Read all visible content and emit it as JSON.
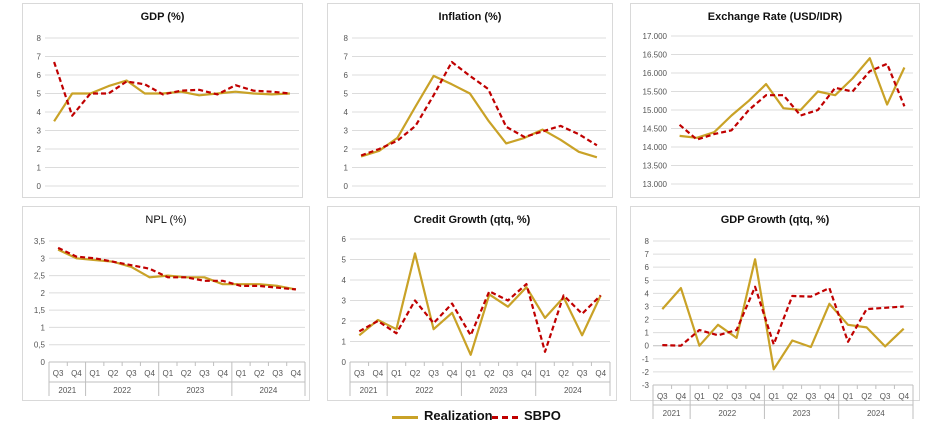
{
  "colors": {
    "realization": "#C9A227",
    "sbpo": "#C00000",
    "grid": "#dcdcdc",
    "axis": "#bfbfbf",
    "text": "#555555"
  },
  "legend": {
    "realization": "Realization",
    "sbpo": "SBPO"
  },
  "chart_data": [
    {
      "id": "gdp",
      "type": "line",
      "title": "GDP (%)",
      "title_weight": "bold",
      "ylim": [
        0,
        8
      ],
      "yticks": [
        0,
        1,
        2,
        3,
        4,
        5,
        6,
        7,
        8
      ],
      "ytick_labels": [
        "0",
        "1",
        "2",
        "3",
        "4",
        "5",
        "6",
        "7",
        "8"
      ],
      "xaxis": "none",
      "series": [
        {
          "name": "Realization",
          "values": [
            3.5,
            5.0,
            5.0,
            5.4,
            5.7,
            5.0,
            5.0,
            5.1,
            4.9,
            5.0,
            5.1,
            5.0,
            4.95,
            5.0
          ]
        },
        {
          "name": "SBPO",
          "values": [
            6.7,
            3.8,
            5.0,
            5.0,
            5.65,
            5.5,
            4.95,
            5.15,
            5.2,
            4.95,
            5.45,
            5.15,
            5.1,
            5.0
          ]
        }
      ]
    },
    {
      "id": "inflation",
      "type": "line",
      "title": "Inflation (%)",
      "title_weight": "bold",
      "ylim": [
        0,
        8
      ],
      "yticks": [
        0,
        1,
        2,
        3,
        4,
        5,
        6,
        7,
        8
      ],
      "ytick_labels": [
        "0",
        "1",
        "2",
        "3",
        "4",
        "5",
        "6",
        "7",
        "8"
      ],
      "xaxis": "none",
      "series": [
        {
          "name": "Realization",
          "values": [
            1.6,
            1.9,
            2.6,
            4.3,
            5.95,
            5.5,
            5.0,
            3.55,
            2.3,
            2.6,
            3.05,
            2.5,
            1.85,
            1.55
          ]
        },
        {
          "name": "SBPO",
          "values": [
            1.65,
            2.0,
            2.45,
            3.25,
            4.9,
            6.7,
            5.95,
            5.25,
            3.2,
            2.65,
            2.95,
            3.25,
            2.8,
            2.2
          ]
        }
      ]
    },
    {
      "id": "exchange",
      "type": "line",
      "title": "Exchange Rate (USD/IDR)",
      "title_weight": "bold",
      "ylim": [
        13000,
        17000
      ],
      "yticks": [
        13000,
        13500,
        14000,
        14500,
        15000,
        15500,
        16000,
        16500,
        17000
      ],
      "ytick_labels": [
        "13.000",
        "13.500",
        "14.000",
        "14.500",
        "15.000",
        "15.500",
        "16.000",
        "16.500",
        "17.000"
      ],
      "xaxis": "none",
      "series": [
        {
          "name": "Realization",
          "values": [
            14300,
            14250,
            14400,
            14850,
            15250,
            15700,
            15050,
            15000,
            15500,
            15400,
            15850,
            16400,
            15150,
            16150
          ]
        },
        {
          "name": "SBPO",
          "values": [
            14600,
            14200,
            14350,
            14450,
            15000,
            15400,
            15400,
            14850,
            15000,
            15600,
            15500,
            16050,
            16250,
            15100
          ]
        }
      ]
    },
    {
      "id": "npl",
      "type": "line",
      "title": "NPL (%)",
      "title_weight": "normal",
      "ylim": [
        0,
        3.5
      ],
      "yticks": [
        0,
        0.5,
        1,
        1.5,
        2,
        2.5,
        3,
        3.5
      ],
      "ytick_labels": [
        "0",
        "0,5",
        "1",
        "1,5",
        "2",
        "2,5",
        "3",
        "3,5"
      ],
      "xaxis": "quarters",
      "quarters": [
        "Q3",
        "Q4",
        "Q1",
        "Q2",
        "Q3",
        "Q4",
        "Q1",
        "Q2",
        "Q3",
        "Q4",
        "Q1",
        "Q2",
        "Q3",
        "Q4"
      ],
      "years": [
        {
          "label": "2021",
          "start": 0,
          "end": 1
        },
        {
          "label": "2022",
          "start": 2,
          "end": 5
        },
        {
          "label": "2023",
          "start": 6,
          "end": 9
        },
        {
          "label": "2024",
          "start": 10,
          "end": 13
        }
      ],
      "series": [
        {
          "name": "Realization",
          "values": [
            3.25,
            3.0,
            2.95,
            2.9,
            2.75,
            2.45,
            2.5,
            2.45,
            2.45,
            2.25,
            2.25,
            2.25,
            2.2,
            2.1
          ]
        },
        {
          "name": "SBPO",
          "values": [
            3.3,
            3.05,
            3.0,
            2.9,
            2.8,
            2.7,
            2.45,
            2.45,
            2.35,
            2.35,
            2.2,
            2.2,
            2.15,
            2.1
          ]
        }
      ]
    },
    {
      "id": "credit",
      "type": "line",
      "title": "Credit Growth (qtq, %)",
      "title_weight": "bold",
      "ylim": [
        0,
        6
      ],
      "yticks": [
        0,
        1,
        2,
        3,
        4,
        5,
        6
      ],
      "ytick_labels": [
        "0",
        "1",
        "2",
        "3",
        "4",
        "5",
        "6"
      ],
      "xaxis": "quarters",
      "quarters": [
        "Q3",
        "Q4",
        "Q1",
        "Q2",
        "Q3",
        "Q4",
        "Q1",
        "Q2",
        "Q3",
        "Q4",
        "Q1",
        "Q2",
        "Q3",
        "Q4"
      ],
      "years": [
        {
          "label": "2021",
          "start": 0,
          "end": 1
        },
        {
          "label": "2022",
          "start": 2,
          "end": 5
        },
        {
          "label": "2023",
          "start": 6,
          "end": 9
        },
        {
          "label": "2024",
          "start": 10,
          "end": 13
        }
      ],
      "series": [
        {
          "name": "Realization",
          "values": [
            1.3,
            2.05,
            1.6,
            5.3,
            1.6,
            2.4,
            0.35,
            3.3,
            2.7,
            3.65,
            2.15,
            3.15,
            1.3,
            3.25
          ]
        },
        {
          "name": "SBPO",
          "values": [
            1.5,
            2.0,
            1.4,
            3.0,
            1.9,
            2.85,
            1.3,
            3.45,
            3.0,
            3.8,
            0.5,
            3.25,
            2.35,
            3.25
          ]
        }
      ]
    },
    {
      "id": "gdpgrowth",
      "type": "line",
      "title": "GDP Growth (qtq, %)",
      "title_weight": "bold",
      "ylim": [
        -3,
        8
      ],
      "yticks": [
        -3,
        -2,
        -1,
        0,
        1,
        2,
        3,
        4,
        5,
        6,
        7,
        8
      ],
      "ytick_labels": [
        "-3",
        "-2",
        "-1",
        "0",
        "1",
        "2",
        "3",
        "4",
        "5",
        "6",
        "7",
        "8"
      ],
      "xaxis": "quarters",
      "quarters": [
        "Q3",
        "Q4",
        "Q1",
        "Q2",
        "Q3",
        "Q4",
        "Q1",
        "Q2",
        "Q3",
        "Q4",
        "Q1",
        "Q2",
        "Q3",
        "Q4"
      ],
      "years": [
        {
          "label": "2021",
          "start": 0,
          "end": 1
        },
        {
          "label": "2022",
          "start": 2,
          "end": 5
        },
        {
          "label": "2023",
          "start": 6,
          "end": 9
        },
        {
          "label": "2024",
          "start": 10,
          "end": 13
        }
      ],
      "series": [
        {
          "name": "Realization",
          "values": [
            2.8,
            4.4,
            0.0,
            1.6,
            0.6,
            6.6,
            -1.8,
            0.4,
            -0.1,
            3.2,
            1.6,
            1.4,
            -0.05,
            1.3
          ]
        },
        {
          "name": "SBPO",
          "values": [
            0.05,
            0.0,
            1.2,
            0.8,
            1.2,
            4.5,
            0.1,
            3.8,
            3.75,
            4.4,
            0.3,
            2.8,
            2.9,
            3.0
          ]
        }
      ]
    }
  ]
}
